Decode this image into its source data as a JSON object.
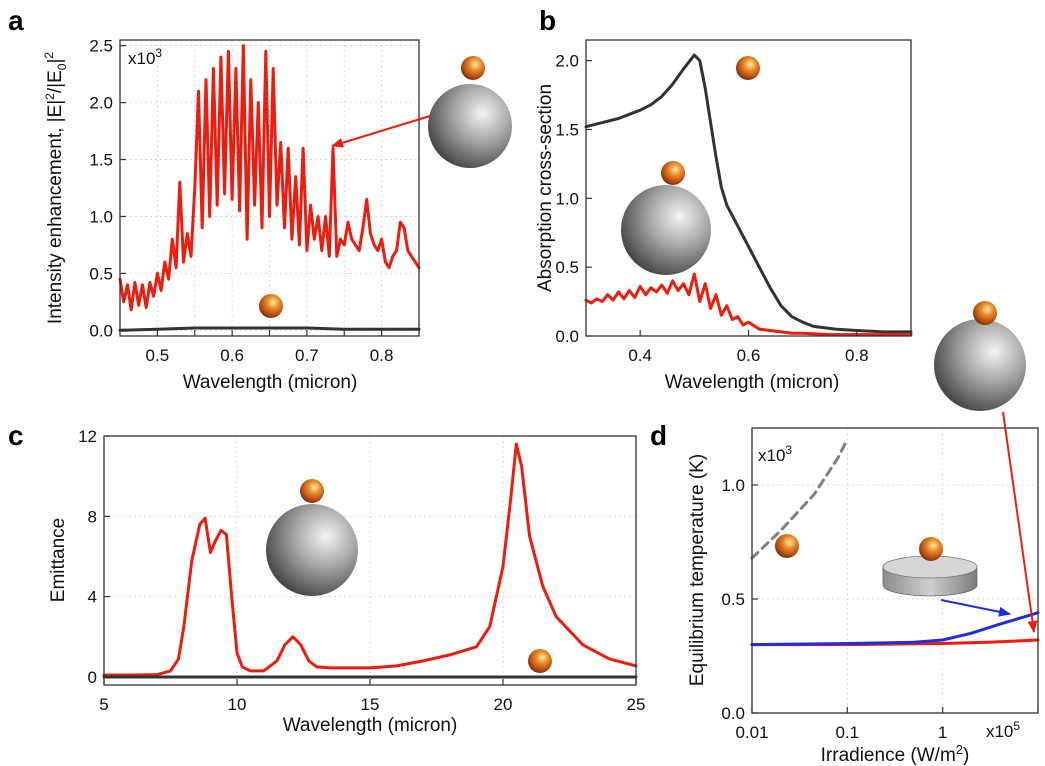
{
  "colors": {
    "red": "#ee1c0e",
    "dark": "#333333",
    "blue": "#1f2fe0",
    "dashed": "#808080",
    "grid": "#cfcfcf"
  },
  "chart_data": [
    {
      "panel": "a",
      "type": "line",
      "xlabel": "Wavelength (micron)",
      "ylabel_main": "Intensity enhancement, |E|",
      "ylabel_exp": "2",
      "ylabel_mid": "/|E",
      "ylabel_sub": "0",
      "ylabel_end": "|",
      "ylabel_exp2": "2",
      "scale_base": "x10",
      "scale_exp": "3",
      "xlim": [
        0.45,
        0.85
      ],
      "ylim": [
        -0.05,
        2.55
      ],
      "xticks": [
        0.5,
        0.55,
        0.6,
        0.65,
        0.7,
        0.75,
        0.8
      ],
      "xtick_labels": [
        "0.5",
        "0.6",
        "0.7",
        "0.8"
      ],
      "xtick_label_values": [
        0.5,
        0.6,
        0.7,
        0.8
      ],
      "yticks": [
        0.0,
        0.5,
        1.0,
        1.5,
        2.0,
        2.5
      ],
      "ytick_labels": [
        "0.0",
        "0.5",
        "1.0",
        "1.5",
        "2.0",
        "2.5"
      ],
      "grid": true,
      "series": [
        {
          "color": "red",
          "x": [
            0.45,
            0.455,
            0.46,
            0.465,
            0.47,
            0.475,
            0.48,
            0.485,
            0.49,
            0.495,
            0.5,
            0.505,
            0.51,
            0.515,
            0.52,
            0.525,
            0.53,
            0.535,
            0.54,
            0.545,
            0.55,
            0.555,
            0.56,
            0.565,
            0.57,
            0.575,
            0.58,
            0.585,
            0.59,
            0.595,
            0.6,
            0.605,
            0.61,
            0.615,
            0.62,
            0.625,
            0.63,
            0.635,
            0.64,
            0.645,
            0.65,
            0.655,
            0.66,
            0.665,
            0.67,
            0.675,
            0.68,
            0.685,
            0.69,
            0.695,
            0.7,
            0.705,
            0.71,
            0.715,
            0.72,
            0.725,
            0.73,
            0.735,
            0.74,
            0.745,
            0.75,
            0.755,
            0.76,
            0.765,
            0.77,
            0.775,
            0.78,
            0.785,
            0.79,
            0.795,
            0.8,
            0.805,
            0.81,
            0.815,
            0.82,
            0.825,
            0.83,
            0.835,
            0.84,
            0.845,
            0.85
          ],
          "y": [
            0.45,
            0.25,
            0.4,
            0.18,
            0.42,
            0.22,
            0.4,
            0.2,
            0.42,
            0.3,
            0.5,
            0.35,
            0.6,
            0.45,
            0.8,
            0.55,
            1.3,
            0.6,
            0.85,
            0.65,
            1.25,
            2.1,
            0.9,
            2.2,
            1.0,
            2.3,
            1.1,
            2.4,
            1.2,
            2.45,
            1.15,
            2.3,
            1.05,
            2.5,
            0.8,
            2.2,
            1.1,
            2.0,
            0.9,
            2.45,
            1.0,
            2.3,
            1.1,
            1.65,
            0.9,
            1.6,
            0.8,
            1.35,
            0.75,
            1.6,
            0.7,
            1.1,
            0.8,
            1.0,
            0.7,
            1.0,
            0.65,
            1.6,
            0.65,
            0.8,
            0.75,
            0.95,
            0.8,
            0.75,
            0.7,
            0.9,
            1.15,
            0.85,
            0.75,
            0.7,
            0.8,
            0.6,
            0.55,
            0.65,
            0.7,
            0.95,
            0.9,
            0.7,
            0.65,
            0.6,
            0.55
          ]
        },
        {
          "color": "dark",
          "x": [
            0.45,
            0.5,
            0.55,
            0.6,
            0.65,
            0.7,
            0.75,
            0.8,
            0.85
          ],
          "y": [
            0.0,
            0.01,
            0.02,
            0.02,
            0.02,
            0.02,
            0.01,
            0.01,
            0.01
          ]
        }
      ]
    },
    {
      "panel": "b",
      "type": "line",
      "xlabel": "Wavelength (micron)",
      "ylabel": "Absorption cross-section",
      "xlim": [
        0.3,
        0.9
      ],
      "ylim": [
        0.0,
        2.15
      ],
      "xticks": [
        0.4,
        0.6,
        0.8
      ],
      "xtick_labels": [
        "0.4",
        "0.6",
        "0.8"
      ],
      "yticks": [
        0.0,
        0.5,
        1.0,
        1.5,
        2.0
      ],
      "ytick_labels": [
        "0.0",
        "0.5",
        "1.0",
        "1.5",
        "2.0"
      ],
      "grid": false,
      "series": [
        {
          "color": "dark",
          "x": [
            0.3,
            0.33,
            0.36,
            0.38,
            0.4,
            0.42,
            0.44,
            0.46,
            0.48,
            0.5,
            0.51,
            0.52,
            0.53,
            0.54,
            0.55,
            0.56,
            0.58,
            0.6,
            0.62,
            0.64,
            0.66,
            0.68,
            0.7,
            0.72,
            0.74,
            0.76,
            0.8,
            0.85,
            0.9
          ],
          "y": [
            1.52,
            1.55,
            1.58,
            1.61,
            1.64,
            1.68,
            1.74,
            1.83,
            1.94,
            2.04,
            2.0,
            1.8,
            1.55,
            1.3,
            1.08,
            0.95,
            0.8,
            0.65,
            0.5,
            0.35,
            0.22,
            0.14,
            0.1,
            0.07,
            0.06,
            0.05,
            0.04,
            0.03,
            0.03
          ]
        },
        {
          "color": "red",
          "x": [
            0.3,
            0.31,
            0.32,
            0.33,
            0.34,
            0.35,
            0.36,
            0.37,
            0.38,
            0.39,
            0.4,
            0.41,
            0.42,
            0.43,
            0.44,
            0.45,
            0.46,
            0.47,
            0.48,
            0.49,
            0.5,
            0.51,
            0.52,
            0.53,
            0.54,
            0.55,
            0.56,
            0.57,
            0.58,
            0.59,
            0.6,
            0.62,
            0.64,
            0.66,
            0.68,
            0.7,
            0.75,
            0.8,
            0.9
          ],
          "y": [
            0.26,
            0.24,
            0.27,
            0.25,
            0.3,
            0.26,
            0.32,
            0.27,
            0.33,
            0.28,
            0.36,
            0.3,
            0.35,
            0.32,
            0.37,
            0.31,
            0.4,
            0.33,
            0.38,
            0.3,
            0.45,
            0.25,
            0.38,
            0.2,
            0.3,
            0.15,
            0.22,
            0.12,
            0.14,
            0.08,
            0.1,
            0.05,
            0.04,
            0.03,
            0.02,
            0.02,
            0.01,
            0.01,
            0.01
          ]
        }
      ]
    },
    {
      "panel": "c",
      "type": "line",
      "xlabel": "Wavelength (micron)",
      "ylabel": "Emittance",
      "xlim": [
        5,
        25
      ],
      "ylim": [
        -0.4,
        12
      ],
      "xticks": [
        5,
        10,
        15,
        20,
        25
      ],
      "xtick_labels": [
        "5",
        "10",
        "15",
        "20",
        "25"
      ],
      "yticks": [
        0,
        4,
        8,
        12
      ],
      "ytick_labels": [
        "0",
        "4",
        "8",
        "12"
      ],
      "grid": true,
      "series": [
        {
          "color": "red",
          "x": [
            5,
            6,
            7,
            7.5,
            7.8,
            8.0,
            8.3,
            8.6,
            8.8,
            9.0,
            9.2,
            9.4,
            9.6,
            9.8,
            10.0,
            10.2,
            10.5,
            11,
            11.5,
            11.8,
            12.1,
            12.4,
            12.7,
            13.0,
            13.5,
            14,
            15,
            16,
            17,
            18,
            19,
            19.5,
            20.0,
            20.3,
            20.5,
            20.7,
            21.0,
            21.5,
            22,
            23,
            24,
            25
          ],
          "y": [
            0.1,
            0.1,
            0.12,
            0.3,
            0.9,
            2.5,
            5.8,
            7.6,
            7.9,
            6.2,
            6.8,
            7.3,
            7.1,
            4.0,
            1.2,
            0.5,
            0.3,
            0.3,
            0.8,
            1.6,
            2.0,
            1.6,
            0.8,
            0.5,
            0.45,
            0.45,
            0.45,
            0.55,
            0.8,
            1.1,
            1.5,
            2.5,
            5.5,
            9.0,
            11.6,
            10.5,
            7.0,
            4.5,
            3.0,
            1.6,
            0.9,
            0.55
          ]
        },
        {
          "color": "dark",
          "x": [
            5,
            25
          ],
          "y": [
            0.0,
            0.0
          ]
        }
      ]
    },
    {
      "panel": "d",
      "type": "line",
      "xlabel_main": "Irradience (W/m",
      "xlabel_exp": "2",
      "xlabel_end": ")",
      "ylabel": "Equilibrium temperature (K)",
      "scale_base": "x10",
      "scale_exp": "3",
      "xscale_base": "x10",
      "xscale_exp": "5",
      "x_log_scale": true,
      "xlim": [
        0.01,
        10
      ],
      "ylim": [
        0.0,
        1.25
      ],
      "xticks": [
        0.01,
        0.1,
        1,
        10
      ],
      "xtick_labels": [
        "0.01",
        "0.1",
        "1",
        ""
      ],
      "yticks": [
        0.0,
        0.5,
        1.0
      ],
      "ytick_labels": [
        "0.0",
        "0.5",
        "1.0"
      ],
      "grid": true,
      "series": [
        {
          "color": "red",
          "x": [
            0.01,
            0.1,
            1,
            3,
            10
          ],
          "y": [
            0.3,
            0.3,
            0.305,
            0.31,
            0.32
          ]
        },
        {
          "color": "blue",
          "x": [
            0.01,
            0.1,
            0.5,
            1,
            2,
            4,
            7,
            10
          ],
          "y": [
            0.3,
            0.305,
            0.31,
            0.32,
            0.35,
            0.39,
            0.42,
            0.44
          ]
        },
        {
          "color": "dashed",
          "x": [
            0.01,
            0.015,
            0.02,
            0.03,
            0.045,
            0.06,
            0.08,
            0.1
          ],
          "y": [
            0.68,
            0.75,
            0.8,
            0.88,
            0.96,
            1.04,
            1.12,
            1.2
          ]
        }
      ]
    }
  ],
  "panel_letters": {
    "a": "a",
    "b": "b",
    "c": "c",
    "d": "d"
  },
  "icons": [
    "small-nanoparticle-icon",
    "large-sphere-icon",
    "disk-icon"
  ]
}
